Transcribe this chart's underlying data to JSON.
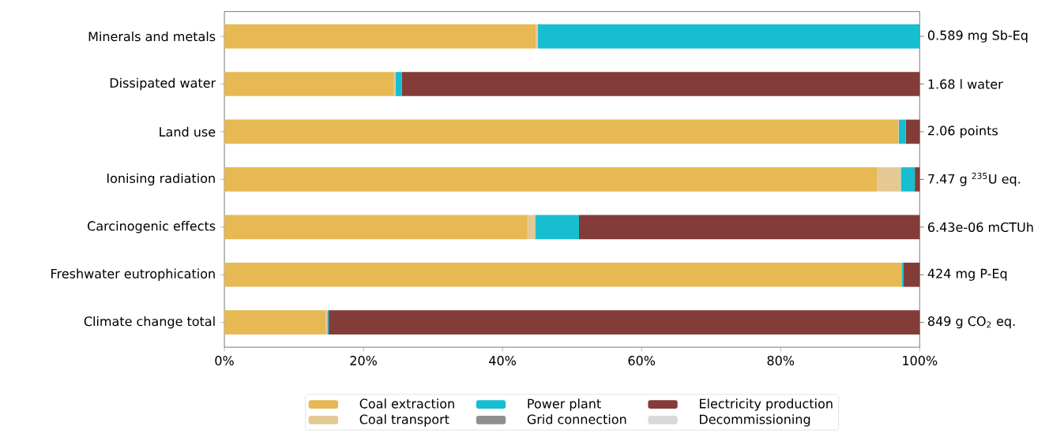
{
  "chart_data": {
    "type": "bar",
    "orientation": "horizontal",
    "stacked": true,
    "categories": [
      "Minerals and metals",
      "Dissipated water",
      "Land use",
      "Ionising radiation",
      "Carcinogenic effects",
      "Freshwater eutrophication",
      "Climate change total"
    ],
    "series": [
      {
        "name": "Coal extraction",
        "color": "#e6b954",
        "values": [
          44.8,
          24.4,
          96.9,
          93.9,
          43.6,
          97.4,
          14.6
        ]
      },
      {
        "name": "Coal transport",
        "color": "#e5c995",
        "values": [
          0.3,
          0.2,
          0.1,
          3.4,
          1.1,
          0,
          0.2
        ]
      },
      {
        "name": "Power plant",
        "color": "#17becf",
        "values": [
          54.9,
          0.9,
          1.0,
          2.0,
          6.3,
          0.3,
          0.2
        ]
      },
      {
        "name": "Grid connection",
        "color": "#8f8f8f",
        "values": [
          0,
          0,
          0,
          0,
          0,
          0,
          0
        ]
      },
      {
        "name": "Electricity production",
        "color": "#843c39",
        "values": [
          0,
          74.5,
          2.0,
          0.7,
          49.0,
          2.3,
          85.0
        ]
      },
      {
        "name": "Decommissioning",
        "color": "#d9d9d9",
        "values": [
          0,
          0,
          0,
          0,
          0,
          0,
          0
        ]
      }
    ],
    "xlim": [
      0,
      100
    ],
    "xticks": [
      {
        "value": 0,
        "label": "0%"
      },
      {
        "value": 20,
        "label": "20%"
      },
      {
        "value": 40,
        "label": "40%"
      },
      {
        "value": 60,
        "label": "60%"
      },
      {
        "value": 80,
        "label": "80%"
      },
      {
        "value": 100,
        "label": "100%"
      }
    ],
    "legend": "bottom",
    "annotations": [
      "0.589 mg Sb-Eq",
      "1.68 l water",
      "2.06 points",
      "7.47 g $^{235}$U eq.",
      "6.43e-06 mCTUh",
      "424 mg P-Eq",
      "849 g CO$_{2}$ eq."
    ]
  }
}
